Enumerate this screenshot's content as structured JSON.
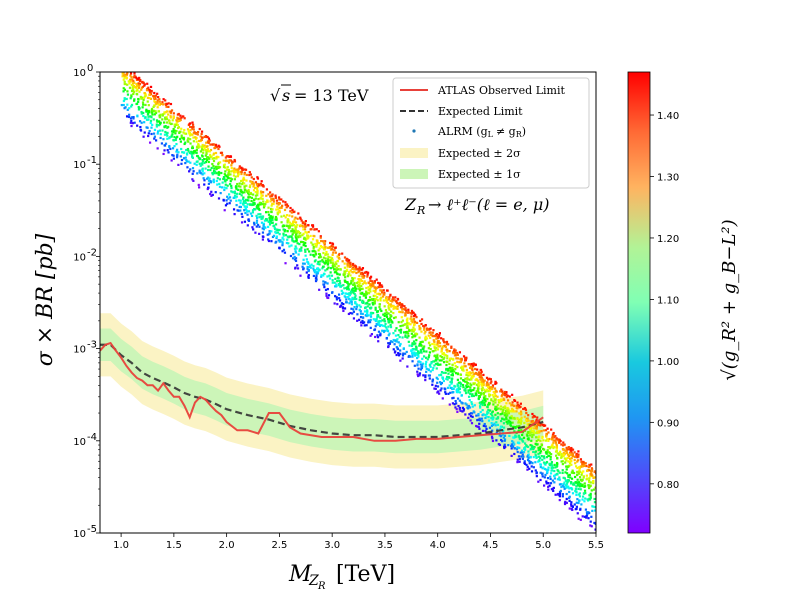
{
  "chart_data": {
    "type": "scatter",
    "title": "",
    "xlabel": "M",
    "xlabel_sub": "Z",
    "xlabel_subsub": "R",
    "xlabel_unit": "[TeV]",
    "ylabel": "σ × BR [pb]",
    "xlim": [
      0.8,
      5.5
    ],
    "ylim": [
      1e-05,
      1
    ],
    "yscale": "log",
    "x_ticks": [
      "1.0",
      "1.5",
      "2.0",
      "2.5",
      "3.0",
      "3.5",
      "4.0",
      "4.5",
      "5.0",
      "5.5"
    ],
    "y_ticks": [
      "10",
      "10",
      "10",
      "10",
      "10",
      "10"
    ],
    "y_tick_exponents": [
      "-5",
      "-4",
      "-3",
      "-2",
      "-1",
      "0"
    ],
    "annotations": {
      "energy_root": "√",
      "energy_s": "s",
      "energy_value": "= 13 TeV",
      "process": "Z",
      "process_sub": "R",
      "process_rest": "→ ℓ⁺ℓ⁻(ℓ = e, μ)"
    },
    "legend": {
      "placement": "top-right",
      "entries": [
        {
          "label": "ATLAS Observed Limit",
          "style": "line",
          "color": "#e8413a"
        },
        {
          "label": "Expected Limit",
          "style": "dashed",
          "color": "#333333"
        },
        {
          "label": "ALRM (g",
          "label_rest": "L",
          "label_neq": "≠ g",
          "label_sub2": "R",
          "label_close": ")",
          "style": "dot",
          "color": "#1f77b4"
        },
        {
          "label": "Expected ± 2σ",
          "style": "band",
          "color": "#fbf3c4"
        },
        {
          "label": "Expected ± 1σ",
          "style": "band",
          "color": "#ccf5b8"
        }
      ]
    },
    "colorbar": {
      "label": "√(g_R² + g_B−L²)",
      "ticks": [
        "0.80",
        "0.90",
        "1.00",
        "1.10",
        "1.20",
        "1.30",
        "1.40"
      ],
      "range": [
        0.72,
        1.47
      ]
    },
    "observed_limit": {
      "x": [
        0.8,
        0.85,
        0.9,
        0.95,
        1.0,
        1.05,
        1.1,
        1.15,
        1.2,
        1.25,
        1.3,
        1.35,
        1.4,
        1.45,
        1.5,
        1.55,
        1.6,
        1.65,
        1.7,
        1.75,
        1.8,
        1.85,
        1.9,
        1.95,
        2.0,
        2.1,
        2.2,
        2.3,
        2.4,
        2.5,
        2.6,
        2.7,
        2.8,
        2.9,
        3.0,
        3.2,
        3.4,
        3.6,
        3.8,
        4.0,
        4.2,
        4.4,
        4.6,
        4.8,
        5.0
      ],
      "y": [
        0.00095,
        0.0011,
        0.00115,
        0.00095,
        0.0008,
        0.00065,
        0.00055,
        0.00048,
        0.00045,
        0.0004,
        0.0004,
        0.00035,
        0.00042,
        0.00035,
        0.0003,
        0.0003,
        0.00024,
        0.00018,
        0.00026,
        0.0003,
        0.00028,
        0.00024,
        0.00021,
        0.00019,
        0.00016,
        0.00013,
        0.00013,
        0.00012,
        0.0002,
        0.0002,
        0.00014,
        0.00012,
        0.000115,
        0.00011,
        0.00011,
        0.00011,
        0.0001,
        0.0001,
        0.000105,
        0.000105,
        0.00011,
        0.000115,
        0.00012,
        0.000125,
        0.00018
      ]
    },
    "expected_limit": {
      "x": [
        0.8,
        0.9,
        1.0,
        1.1,
        1.2,
        1.3,
        1.4,
        1.5,
        1.6,
        1.7,
        1.8,
        1.9,
        2.0,
        2.2,
        2.4,
        2.6,
        2.8,
        3.0,
        3.2,
        3.4,
        3.6,
        3.8,
        4.0,
        4.2,
        4.4,
        4.6,
        4.8,
        5.0
      ],
      "y": [
        0.0011,
        0.0011,
        0.00085,
        0.0007,
        0.00055,
        0.00048,
        0.00043,
        0.00038,
        0.00033,
        0.0003,
        0.00028,
        0.00025,
        0.00022,
        0.00019,
        0.00017,
        0.000145,
        0.00013,
        0.00012,
        0.000115,
        0.000115,
        0.00011,
        0.00011,
        0.00011,
        0.000115,
        0.00012,
        0.00013,
        0.00014,
        0.00016
      ]
    },
    "band_1sigma_factor": 1.5,
    "band_2sigma_factor": 2.2,
    "scatter_band": {
      "description": "ALRM points: log10(σBR) spans roughly upper edge to lower edge, coloured by coupling",
      "upper_edge": {
        "x": [
          1.0,
          5.5
        ],
        "log_y": [
          0.1,
          -4.3
        ]
      },
      "lower_edge": {
        "x": [
          1.0,
          5.5
        ],
        "log_y": [
          -0.5,
          -5.0
        ]
      }
    }
  }
}
